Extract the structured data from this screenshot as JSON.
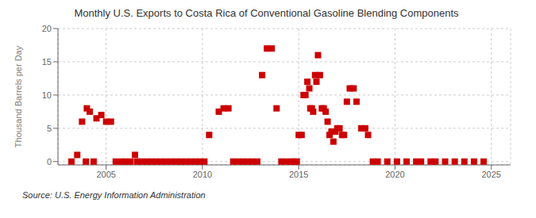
{
  "chart_data": {
    "type": "scatter",
    "title": "Monthly U.S. Exports to Costa Rica of Conventional Gasoline Blending Components",
    "y_label": "Thousand Barrels per Day",
    "source": "Source: U.S. Energy Information Administration",
    "x": [
      2003.5,
      2003.75,
      2004.0,
      2004.15,
      2004.5,
      2004.75,
      2005.0,
      2005.25,
      2006.5,
      2003.2,
      2003.95,
      2004.35,
      2005.5,
      2005.8,
      2006.0,
      2006.25,
      2006.6,
      2006.85,
      2007.1,
      2007.35,
      2007.6,
      2007.85,
      2008.1,
      2008.4,
      2008.65,
      2008.9,
      2009.15,
      2009.4,
      2009.65,
      2009.85,
      2010.1,
      2010.35,
      2010.85,
      2011.1,
      2011.35,
      2011.6,
      2011.85,
      2012.1,
      2012.35,
      2012.6,
      2012.85,
      2013.1,
      2013.35,
      2013.6,
      2013.85,
      2014.1,
      2014.35,
      2014.6,
      2014.75,
      2014.9,
      2015.0,
      2015.15,
      2015.25,
      2015.35,
      2015.45,
      2015.55,
      2015.6,
      2015.68,
      2015.75,
      2015.85,
      2015.92,
      2016.0,
      2016.1,
      2016.2,
      2016.3,
      2016.4,
      2016.5,
      2016.6,
      2016.7,
      2016.8,
      2016.9,
      2017.0,
      2017.12,
      2017.25,
      2017.35,
      2017.5,
      2017.65,
      2017.85,
      2018.0,
      2018.25,
      2018.45,
      2018.6,
      2018.85,
      2019.1,
      2019.6,
      2020.1,
      2020.6,
      2021.1,
      2021.35,
      2021.85,
      2022.1,
      2022.6,
      2023.1,
      2023.6,
      2024.1,
      2024.6
    ],
    "values": [
      1.0,
      6.0,
      8.0,
      7.5,
      6.5,
      7.0,
      6.0,
      6.0,
      1.0,
      0.0,
      0.0,
      0.0,
      0.0,
      0.0,
      0.0,
      0.0,
      0.0,
      0.0,
      0.0,
      0.0,
      0.0,
      0.0,
      0.0,
      0.0,
      0.0,
      0.0,
      0.0,
      0.0,
      0.0,
      0.0,
      0.0,
      4.0,
      7.5,
      8.0,
      8.0,
      0.0,
      0.0,
      0.0,
      0.0,
      0.0,
      0.0,
      13.0,
      17.0,
      17.0,
      8.0,
      0.0,
      0.0,
      0.0,
      0.0,
      0.0,
      4.0,
      4.0,
      10.0,
      10.0,
      12.0,
      11.0,
      8.0,
      8.0,
      7.5,
      13.0,
      12.0,
      16.0,
      13.0,
      8.0,
      8.0,
      7.5,
      6.0,
      4.0,
      4.5,
      3.0,
      4.5,
      5.0,
      5.0,
      4.0,
      4.0,
      9.0,
      11.0,
      11.0,
      9.0,
      5.0,
      5.0,
      4.0,
      0.0,
      0.0,
      0.0,
      0.0,
      0.0,
      0.0,
      0.0,
      0.0,
      0.0,
      0.0,
      0.0,
      0.0,
      0.0,
      0.0
    ],
    "color": "#cc0000",
    "marker": "square",
    "xlim": [
      2002.5,
      2026
    ],
    "xticks": [
      2005,
      2010,
      2015,
      2020,
      2025
    ],
    "ylim": [
      -0.5,
      20
    ],
    "yticks": [
      0,
      5,
      10,
      15,
      20
    ],
    "grid": true
  }
}
